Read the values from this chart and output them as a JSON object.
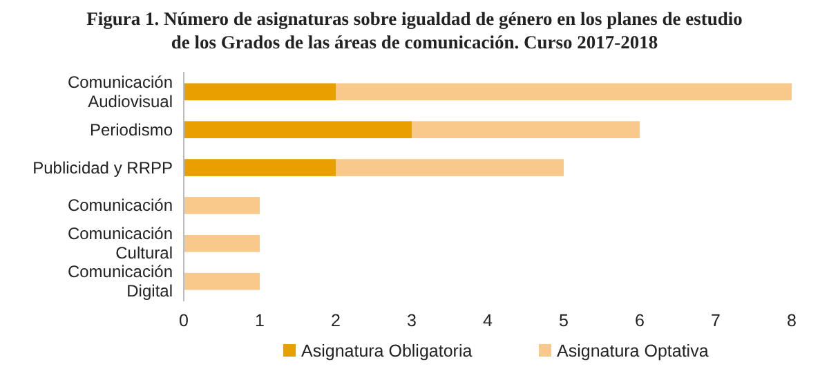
{
  "chart_data": {
    "type": "bar",
    "orientation": "horizontal",
    "stacked": true,
    "title": "Figura 1. Número de asignaturas sobre igualdad de género en los planes de estudio de los Grados de las áreas de comunicación. Curso 2017-2018",
    "categories": [
      "Comunicación Audiovisual",
      "Periodismo",
      "Publicidad y RRPP",
      "Comunicación",
      "Comunicación Cultural",
      "Comunicación Digital"
    ],
    "series": [
      {
        "name": "Asignatura Obligatoria",
        "color": "#e8a000",
        "values": [
          2,
          3,
          2,
          0,
          0,
          0
        ]
      },
      {
        "name": "Asignatura Optativa",
        "color": "#f9c98b",
        "values": [
          6,
          3,
          3,
          1,
          1,
          1
        ]
      }
    ],
    "xlim": [
      0,
      8
    ],
    "xticks": [
      0,
      1,
      2,
      3,
      4,
      5,
      6,
      7,
      8
    ],
    "grid": false,
    "legend": "bottom"
  }
}
